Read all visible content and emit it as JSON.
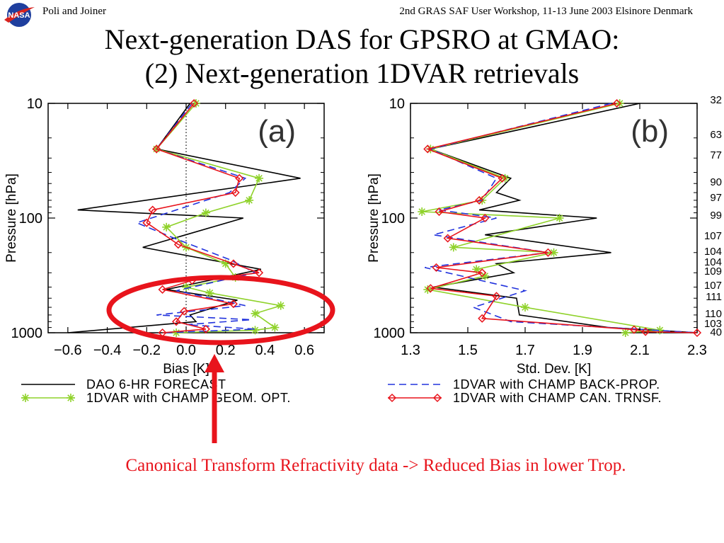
{
  "header": {
    "authors": "Poli and Joiner",
    "workshop": "2nd GRAS SAF User Workshop, 11-13 June 2003 Elsinore Denmark",
    "logo_text": "NASA"
  },
  "title": {
    "line1": "Next-generation DAS for GPSRO at GMAO:",
    "line2": "(2) Next-generation 1DVAR retrievals"
  },
  "annotation": "Canonical Transform Refractivity data -> Reduced Bias in lower Trop.",
  "colors": {
    "forecast": "#000000",
    "geom": "#8fd22a",
    "backprop": "#2233dd",
    "can": "#e8141c",
    "highlight": "#e8141c"
  },
  "chart_data": [
    {
      "type": "line",
      "panel_label": "(a)",
      "xlabel": "Bias [K]",
      "ylabel": "Pressure [hPa]",
      "xlim": [
        -0.7,
        0.7
      ],
      "ylim": [
        1000,
        10
      ],
      "y_scale": "log",
      "x_ticks": [
        "-0.6",
        "-0.4",
        "-0.2",
        "0.0",
        "0.2",
        "0.4",
        "0.6"
      ],
      "y_ticks": [
        "10",
        "100",
        "1000"
      ],
      "reference_line_x": 0,
      "series": [
        {
          "name": "DAO 6-HR FORECAST",
          "style": "solid",
          "x": [
            0.02,
            -0.15,
            0.58,
            -0.55,
            0.29,
            -0.22,
            0.38,
            -0.1,
            0.26,
            0.02,
            0.05,
            -0.6
          ],
          "y": [
            10,
            25,
            45,
            85,
            100,
            180,
            280,
            420,
            520,
            700,
            800,
            1000
          ]
        },
        {
          "name": "1DVAR with CHAMP GEOM. OPT.",
          "style": "solid-star",
          "x": [
            0.05,
            -0.15,
            0.37,
            0.32,
            0.1,
            -0.1,
            0.0,
            0.2,
            0.25,
            0.0,
            0.12,
            0.48,
            0.35,
            0.45,
            0.35,
            -0.05
          ],
          "y": [
            10,
            25,
            45,
            70,
            90,
            120,
            180,
            250,
            330,
            400,
            450,
            580,
            680,
            900,
            950,
            1000
          ]
        },
        {
          "name": "1DVAR with CHAMP BACK-PROP.",
          "style": "dashed",
          "x": [
            0.03,
            -0.15,
            0.3,
            0.22,
            -0.05,
            -0.25,
            -0.06,
            0.22,
            0.35,
            -0.05,
            0.3,
            -0.15,
            0.33,
            0.0,
            0.35,
            -0.1
          ],
          "y": [
            10,
            25,
            45,
            60,
            85,
            110,
            150,
            230,
            300,
            430,
            580,
            700,
            770,
            850,
            930,
            1000
          ]
        },
        {
          "name": "1DVAR with CHAMP CAN. TRNSF.",
          "style": "solid-diamond",
          "x": [
            0.04,
            -0.15,
            0.27,
            0.25,
            -0.17,
            -0.2,
            -0.04,
            0.24,
            0.37,
            0.03,
            -0.12,
            0.24,
            -0.01,
            -0.05,
            0.1,
            -0.12
          ],
          "y": [
            10,
            25,
            45,
            60,
            85,
            110,
            170,
            250,
            300,
            350,
            420,
            560,
            650,
            800,
            930,
            1000
          ]
        }
      ]
    },
    {
      "type": "line",
      "panel_label": "(b)",
      "xlabel": "Std. Dev. [K]",
      "ylabel": "Pressure [hPa]",
      "xlim": [
        1.3,
        2.3
      ],
      "ylim": [
        1000,
        10
      ],
      "y_scale": "log",
      "x_ticks": [
        "1.3",
        "1.5",
        "1.7",
        "1.9",
        "2.1",
        "2.3"
      ],
      "y_ticks": [
        "10",
        "100",
        "1000"
      ],
      "right_axis_labels": [
        "32",
        "63",
        "77",
        "90",
        "97",
        "99",
        "107",
        "104",
        "104",
        "109",
        "107",
        "111",
        "110",
        "103",
        "40"
      ],
      "series": [
        {
          "name": "DAO 6-HR FORECAST",
          "style": "solid",
          "x": [
            2.1,
            1.37,
            1.65,
            1.6,
            1.68,
            1.54,
            1.95,
            1.56,
            2.0,
            1.6,
            1.66,
            1.38,
            1.67,
            1.68,
            1.99,
            2.3
          ],
          "y": [
            10,
            25,
            45,
            60,
            70,
            85,
            100,
            140,
            200,
            250,
            300,
            400,
            500,
            700,
            900,
            1000
          ]
        },
        {
          "name": "1DVAR with CHAMP GEOM. OPT.",
          "style": "solid-star",
          "x": [
            2.03,
            1.37,
            1.63,
            1.55,
            1.34,
            1.82,
            1.45,
            1.8,
            1.53,
            1.56,
            1.36,
            1.7,
            2.17,
            2.05
          ],
          "y": [
            10,
            25,
            45,
            70,
            88,
            100,
            180,
            200,
            280,
            320,
            420,
            600,
            950,
            1000
          ]
        },
        {
          "name": "1DVAR with CHAMP BACK-PROP.",
          "style": "dashed",
          "x": [
            2.0,
            1.37,
            1.6,
            1.55,
            1.4,
            1.6,
            1.38,
            1.78,
            1.35,
            1.7,
            1.52,
            1.65,
            2.15,
            2.3
          ],
          "y": [
            10,
            25,
            45,
            70,
            85,
            100,
            140,
            200,
            270,
            430,
            600,
            800,
            950,
            1000
          ]
        },
        {
          "name": "1DVAR with CHAMP CAN. TRNSF.",
          "style": "solid-diamond",
          "x": [
            2.02,
            1.36,
            1.62,
            1.54,
            1.4,
            1.56,
            1.43,
            1.78,
            1.39,
            1.55,
            1.37,
            1.6,
            1.55,
            2.08,
            2.12,
            2.3
          ],
          "y": [
            10,
            25,
            45,
            70,
            88,
            100,
            150,
            200,
            270,
            300,
            410,
            480,
            750,
            940,
            980,
            1000
          ]
        }
      ]
    }
  ]
}
